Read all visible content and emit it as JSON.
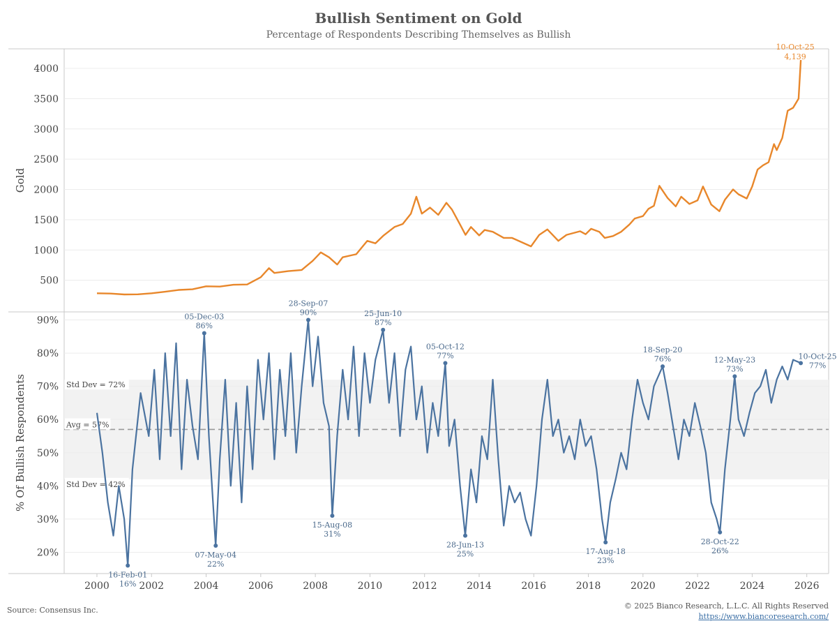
{
  "header": {
    "title": "Bullish Sentiment on Gold",
    "subtitle": "Percentage of Respondents Describing Themselves as Bullish"
  },
  "footer": {
    "source": "Source: Consensus Inc.",
    "copyright": "© 2025 Bianco Research, L.L.C. All Rights Reserved",
    "url": "https://www.biancoresearch.com/"
  },
  "colors": {
    "gold": "#e8872b",
    "sentiment": "#4b73a0",
    "band": "#f2f2f2",
    "avg_line": "#999999",
    "grid": "#ececec"
  },
  "chart_data": [
    {
      "type": "line",
      "ylabel": "Gold",
      "ylim": [
        0,
        4300
      ],
      "yticks": [
        500,
        1000,
        1500,
        2000,
        2500,
        3000,
        3500,
        4000
      ],
      "xlim": [
        1998.8,
        2026.8
      ],
      "grid": true,
      "series": [
        {
          "color": "#e8872b",
          "points": [
            [
              2000.0,
              285
            ],
            [
              2000.5,
              280
            ],
            [
              2001.0,
              265
            ],
            [
              2001.5,
              268
            ],
            [
              2002.0,
              285
            ],
            [
              2002.5,
              310
            ],
            [
              2003.0,
              340
            ],
            [
              2003.5,
              350
            ],
            [
              2004.0,
              400
            ],
            [
              2004.5,
              395
            ],
            [
              2005.0,
              425
            ],
            [
              2005.5,
              430
            ],
            [
              2006.0,
              550
            ],
            [
              2006.3,
              700
            ],
            [
              2006.5,
              620
            ],
            [
              2007.0,
              650
            ],
            [
              2007.5,
              670
            ],
            [
              2007.9,
              820
            ],
            [
              2008.2,
              960
            ],
            [
              2008.5,
              880
            ],
            [
              2008.8,
              760
            ],
            [
              2009.0,
              880
            ],
            [
              2009.5,
              930
            ],
            [
              2009.9,
              1150
            ],
            [
              2010.2,
              1110
            ],
            [
              2010.5,
              1240
            ],
            [
              2010.9,
              1380
            ],
            [
              2011.2,
              1430
            ],
            [
              2011.5,
              1600
            ],
            [
              2011.7,
              1880
            ],
            [
              2011.9,
              1600
            ],
            [
              2012.2,
              1700
            ],
            [
              2012.5,
              1580
            ],
            [
              2012.8,
              1780
            ],
            [
              2013.0,
              1670
            ],
            [
              2013.3,
              1420
            ],
            [
              2013.5,
              1250
            ],
            [
              2013.7,
              1380
            ],
            [
              2014.0,
              1240
            ],
            [
              2014.2,
              1330
            ],
            [
              2014.5,
              1300
            ],
            [
              2014.9,
              1200
            ],
            [
              2015.2,
              1200
            ],
            [
              2015.5,
              1140
            ],
            [
              2015.9,
              1060
            ],
            [
              2016.2,
              1250
            ],
            [
              2016.5,
              1340
            ],
            [
              2016.9,
              1150
            ],
            [
              2017.2,
              1250
            ],
            [
              2017.7,
              1310
            ],
            [
              2017.9,
              1260
            ],
            [
              2018.1,
              1350
            ],
            [
              2018.4,
              1300
            ],
            [
              2018.6,
              1200
            ],
            [
              2018.9,
              1230
            ],
            [
              2019.2,
              1300
            ],
            [
              2019.5,
              1420
            ],
            [
              2019.7,
              1520
            ],
            [
              2020.0,
              1560
            ],
            [
              2020.2,
              1680
            ],
            [
              2020.4,
              1730
            ],
            [
              2020.6,
              2060
            ],
            [
              2020.9,
              1860
            ],
            [
              2021.2,
              1720
            ],
            [
              2021.4,
              1880
            ],
            [
              2021.7,
              1760
            ],
            [
              2022.0,
              1820
            ],
            [
              2022.2,
              2050
            ],
            [
              2022.5,
              1750
            ],
            [
              2022.8,
              1640
            ],
            [
              2023.0,
              1830
            ],
            [
              2023.3,
              2000
            ],
            [
              2023.5,
              1920
            ],
            [
              2023.8,
              1850
            ],
            [
              2024.0,
              2050
            ],
            [
              2024.2,
              2330
            ],
            [
              2024.4,
              2400
            ],
            [
              2024.6,
              2450
            ],
            [
              2024.8,
              2750
            ],
            [
              2024.9,
              2650
            ],
            [
              2025.1,
              2850
            ],
            [
              2025.3,
              3300
            ],
            [
              2025.5,
              3350
            ],
            [
              2025.7,
              3500
            ],
            [
              2025.78,
              4139
            ]
          ]
        }
      ],
      "annotations": [
        {
          "x": 2025.78,
          "y": 4139,
          "label": "10-Oct-25",
          "value_label": "4,139"
        }
      ]
    },
    {
      "type": "line",
      "ylabel": "% Of Bullish Respondents",
      "ylim": [
        14,
        92
      ],
      "yticks": [
        20,
        30,
        40,
        50,
        60,
        70,
        80,
        90
      ],
      "ytick_labels": [
        "20%",
        "30%",
        "40%",
        "50%",
        "60%",
        "70%",
        "80%",
        "90%"
      ],
      "xlim": [
        1998.8,
        2026.8
      ],
      "xticks": [
        2000,
        2002,
        2004,
        2006,
        2008,
        2010,
        2012,
        2014,
        2016,
        2018,
        2020,
        2022,
        2024,
        2026
      ],
      "grid": true,
      "avg": 57,
      "avg_label": "Avg = 57%",
      "std_band": [
        42,
        72
      ],
      "std_upper_label": "Std Dev = 72%",
      "std_lower_label": "Std Dev = 42%",
      "series": [
        {
          "color": "#4b73a0",
          "points": [
            [
              2000.0,
              62
            ],
            [
              2000.2,
              50
            ],
            [
              2000.4,
              35
            ],
            [
              2000.6,
              25
            ],
            [
              2000.8,
              40
            ],
            [
              2001.0,
              30
            ],
            [
              2001.13,
              16
            ],
            [
              2001.3,
              45
            ],
            [
              2001.6,
              68
            ],
            [
              2001.9,
              55
            ],
            [
              2002.1,
              75
            ],
            [
              2002.3,
              48
            ],
            [
              2002.5,
              80
            ],
            [
              2002.7,
              55
            ],
            [
              2002.9,
              83
            ],
            [
              2003.1,
              45
            ],
            [
              2003.3,
              72
            ],
            [
              2003.5,
              58
            ],
            [
              2003.7,
              48
            ],
            [
              2003.93,
              86
            ],
            [
              2004.1,
              55
            ],
            [
              2004.35,
              22
            ],
            [
              2004.5,
              48
            ],
            [
              2004.7,
              72
            ],
            [
              2004.9,
              40
            ],
            [
              2005.1,
              65
            ],
            [
              2005.3,
              35
            ],
            [
              2005.5,
              70
            ],
            [
              2005.7,
              45
            ],
            [
              2005.9,
              78
            ],
            [
              2006.1,
              60
            ],
            [
              2006.3,
              80
            ],
            [
              2006.5,
              48
            ],
            [
              2006.7,
              75
            ],
            [
              2006.9,
              55
            ],
            [
              2007.1,
              80
            ],
            [
              2007.3,
              50
            ],
            [
              2007.5,
              70
            ],
            [
              2007.74,
              90
            ],
            [
              2007.9,
              70
            ],
            [
              2008.1,
              85
            ],
            [
              2008.3,
              65
            ],
            [
              2008.5,
              58
            ],
            [
              2008.62,
              31
            ],
            [
              2008.8,
              55
            ],
            [
              2009.0,
              75
            ],
            [
              2009.2,
              60
            ],
            [
              2009.4,
              82
            ],
            [
              2009.6,
              55
            ],
            [
              2009.8,
              80
            ],
            [
              2010.0,
              65
            ],
            [
              2010.2,
              78
            ],
            [
              2010.48,
              87
            ],
            [
              2010.7,
              65
            ],
            [
              2010.9,
              80
            ],
            [
              2011.1,
              55
            ],
            [
              2011.3,
              75
            ],
            [
              2011.5,
              82
            ],
            [
              2011.7,
              60
            ],
            [
              2011.9,
              70
            ],
            [
              2012.1,
              50
            ],
            [
              2012.3,
              65
            ],
            [
              2012.5,
              55
            ],
            [
              2012.76,
              77
            ],
            [
              2012.9,
              52
            ],
            [
              2013.1,
              60
            ],
            [
              2013.3,
              40
            ],
            [
              2013.49,
              25
            ],
            [
              2013.7,
              45
            ],
            [
              2013.9,
              35
            ],
            [
              2014.1,
              55
            ],
            [
              2014.3,
              48
            ],
            [
              2014.5,
              72
            ],
            [
              2014.7,
              48
            ],
            [
              2014.9,
              28
            ],
            [
              2015.1,
              40
            ],
            [
              2015.3,
              35
            ],
            [
              2015.5,
              38
            ],
            [
              2015.7,
              30
            ],
            [
              2015.9,
              25
            ],
            [
              2016.1,
              40
            ],
            [
              2016.3,
              60
            ],
            [
              2016.5,
              72
            ],
            [
              2016.7,
              55
            ],
            [
              2016.9,
              60
            ],
            [
              2017.1,
              50
            ],
            [
              2017.3,
              55
            ],
            [
              2017.5,
              48
            ],
            [
              2017.7,
              60
            ],
            [
              2017.9,
              52
            ],
            [
              2018.1,
              55
            ],
            [
              2018.3,
              45
            ],
            [
              2018.5,
              30
            ],
            [
              2018.63,
              23
            ],
            [
              2018.8,
              35
            ],
            [
              2019.0,
              42
            ],
            [
              2019.2,
              50
            ],
            [
              2019.4,
              45
            ],
            [
              2019.6,
              60
            ],
            [
              2019.8,
              72
            ],
            [
              2020.0,
              65
            ],
            [
              2020.2,
              60
            ],
            [
              2020.4,
              70
            ],
            [
              2020.72,
              76
            ],
            [
              2020.9,
              68
            ],
            [
              2021.1,
              58
            ],
            [
              2021.3,
              48
            ],
            [
              2021.5,
              60
            ],
            [
              2021.7,
              55
            ],
            [
              2021.9,
              65
            ],
            [
              2022.1,
              58
            ],
            [
              2022.3,
              50
            ],
            [
              2022.5,
              35
            ],
            [
              2022.7,
              30
            ],
            [
              2022.82,
              26
            ],
            [
              2023.0,
              45
            ],
            [
              2023.2,
              60
            ],
            [
              2023.36,
              73
            ],
            [
              2023.5,
              60
            ],
            [
              2023.7,
              55
            ],
            [
              2023.9,
              62
            ],
            [
              2024.1,
              68
            ],
            [
              2024.3,
              70
            ],
            [
              2024.5,
              75
            ],
            [
              2024.7,
              65
            ],
            [
              2024.9,
              72
            ],
            [
              2025.1,
              76
            ],
            [
              2025.3,
              72
            ],
            [
              2025.5,
              78
            ],
            [
              2025.78,
              77
            ]
          ]
        }
      ],
      "annotations": [
        {
          "x": 2001.13,
          "y": 16,
          "label": "16-Feb-01",
          "value_label": "16%",
          "pos": "below"
        },
        {
          "x": 2003.93,
          "y": 86,
          "label": "05-Dec-03",
          "value_label": "86%",
          "pos": "above"
        },
        {
          "x": 2004.35,
          "y": 22,
          "label": "07-May-04",
          "value_label": "22%",
          "pos": "below"
        },
        {
          "x": 2007.74,
          "y": 90,
          "label": "28-Sep-07",
          "value_label": "90%",
          "pos": "above"
        },
        {
          "x": 2008.62,
          "y": 31,
          "label": "15-Aug-08",
          "value_label": "31%",
          "pos": "below"
        },
        {
          "x": 2010.48,
          "y": 87,
          "label": "25-Jun-10",
          "value_label": "87%",
          "pos": "above"
        },
        {
          "x": 2012.76,
          "y": 77,
          "label": "05-Oct-12",
          "value_label": "77%",
          "pos": "above"
        },
        {
          "x": 2013.49,
          "y": 25,
          "label": "28-Jun-13",
          "value_label": "25%",
          "pos": "below"
        },
        {
          "x": 2018.63,
          "y": 23,
          "label": "17-Aug-18",
          "value_label": "23%",
          "pos": "below"
        },
        {
          "x": 2020.72,
          "y": 76,
          "label": "18-Sep-20",
          "value_label": "76%",
          "pos": "above"
        },
        {
          "x": 2022.82,
          "y": 26,
          "label": "28-Oct-22",
          "value_label": "26%",
          "pos": "below"
        },
        {
          "x": 2023.36,
          "y": 73,
          "label": "12-May-23",
          "value_label": "73%",
          "pos": "above"
        },
        {
          "x": 2025.78,
          "y": 77,
          "label": "10-Oct-25",
          "value_label": "77%",
          "pos": "right"
        }
      ]
    }
  ]
}
